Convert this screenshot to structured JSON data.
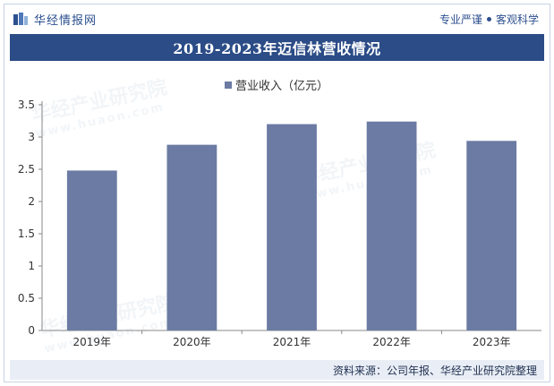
{
  "header": {
    "brand_name": "华经情报网",
    "slogan_left": "专业严谨",
    "slogan_right": "客观科学"
  },
  "colors": {
    "accent": "#2b4c86",
    "bar": "#6b7ba3",
    "footer_bg": "#e9eef6"
  },
  "footer": {
    "source": "资料来源：公司年报、华经产业研究院整理"
  },
  "watermark": {
    "text": "华经产业研究院",
    "url": "www.huaon.com"
  },
  "chart_data": {
    "type": "bar",
    "title": "2019-2023年迈信林营收情况",
    "categories": [
      "2019年",
      "2020年",
      "2021年",
      "2022年",
      "2023年"
    ],
    "series": [
      {
        "name": "营业收入（亿元）",
        "values": [
          2.48,
          2.88,
          3.2,
          3.24,
          2.94
        ]
      }
    ],
    "yticks": [
      "0",
      "0.5",
      "1",
      "1.5",
      "2",
      "2.5",
      "3",
      "3.5"
    ],
    "ylim": [
      0,
      3.5
    ],
    "legend_position": "top-center",
    "grid": false,
    "xlabel": "",
    "ylabel": ""
  }
}
